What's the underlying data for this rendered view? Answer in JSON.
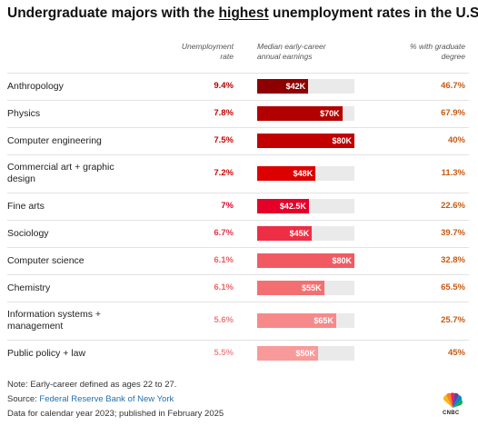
{
  "title": {
    "prefix": "Undergraduate majors with the ",
    "highlight": "highest",
    "suffix": " unemployment rates in the U.S."
  },
  "headers": {
    "rate_line1": "Unemployment",
    "rate_line2": "rate",
    "earnings_line1": "Median early-career",
    "earnings_line2": "annual earnings",
    "grad_line1": "% with graduate",
    "grad_line2": "degree"
  },
  "chart_data": {
    "type": "table",
    "title": "Undergraduate majors with the highest unemployment rates in the U.S.",
    "columns": [
      "",
      "Unemployment rate",
      "Median early-career annual earnings",
      "% with graduate degree"
    ],
    "earnings_scale_max": 80000,
    "rows": [
      {
        "major_line1": "Anthropology",
        "major_line2": "",
        "rate": "9.4%",
        "earnings": 42000,
        "earnings_label": "$42K",
        "grad": "46.7%",
        "bar_color": "#8e0000",
        "rate_color": "#b00000"
      },
      {
        "major_line1": "Physics",
        "major_line2": "",
        "rate": "7.8%",
        "earnings": 70000,
        "earnings_label": "$70K",
        "grad": "67.9%",
        "bar_color": "#b20000",
        "rate_color": "#c00000"
      },
      {
        "major_line1": "Computer engineering",
        "major_line2": "",
        "rate": "7.5%",
        "earnings": 80000,
        "earnings_label": "$80K",
        "grad": "40%",
        "bar_color": "#c20000",
        "rate_color": "#c80000"
      },
      {
        "major_line1": "Commercial art + graphic",
        "major_line2": "design",
        "rate": "7.2%",
        "earnings": 48000,
        "earnings_label": "$48K",
        "grad": "11.3%",
        "bar_color": "#dc0000",
        "rate_color": "#d40000"
      },
      {
        "major_line1": "Fine arts",
        "major_line2": "",
        "rate": "7%",
        "earnings": 42500,
        "earnings_label": "$42.5K",
        "grad": "22.6%",
        "bar_color": "#e5002a",
        "rate_color": "#e0002a"
      },
      {
        "major_line1": "Sociology",
        "major_line2": "",
        "rate": "6.7%",
        "earnings": 45000,
        "earnings_label": "$45K",
        "grad": "39.7%",
        "bar_color": "#ee2e45",
        "rate_color": "#e8304a"
      },
      {
        "major_line1": "Computer science",
        "major_line2": "",
        "rate": "6.1%",
        "earnings": 80000,
        "earnings_label": "$80K",
        "grad": "32.8%",
        "bar_color": "#f25a62",
        "rate_color": "#ef5a62"
      },
      {
        "major_line1": "Chemistry",
        "major_line2": "",
        "rate": "6.1%",
        "earnings": 55000,
        "earnings_label": "$55K",
        "grad": "65.5%",
        "bar_color": "#f46f72",
        "rate_color": "#ef6268"
      },
      {
        "major_line1": "Information systems +",
        "major_line2": "management",
        "rate": "5.6%",
        "earnings": 65000,
        "earnings_label": "$65K",
        "grad": "25.7%",
        "bar_color": "#f7898a",
        "rate_color": "#f27a7e"
      },
      {
        "major_line1": "Public policy + law",
        "major_line2": "",
        "rate": "5.5%",
        "earnings": 50000,
        "earnings_label": "$50K",
        "grad": "45%",
        "bar_color": "#f99a9a",
        "rate_color": "#f48a8c"
      }
    ]
  },
  "footer": {
    "note": "Note: Early-career defined as ages 22 to 27.",
    "source_prefix": "Source: ",
    "source_link": "Federal Reserve Bank of New York",
    "data_line": "Data for calendar year 2023; published in February 2025"
  },
  "logo": {
    "text": "CNBC"
  }
}
